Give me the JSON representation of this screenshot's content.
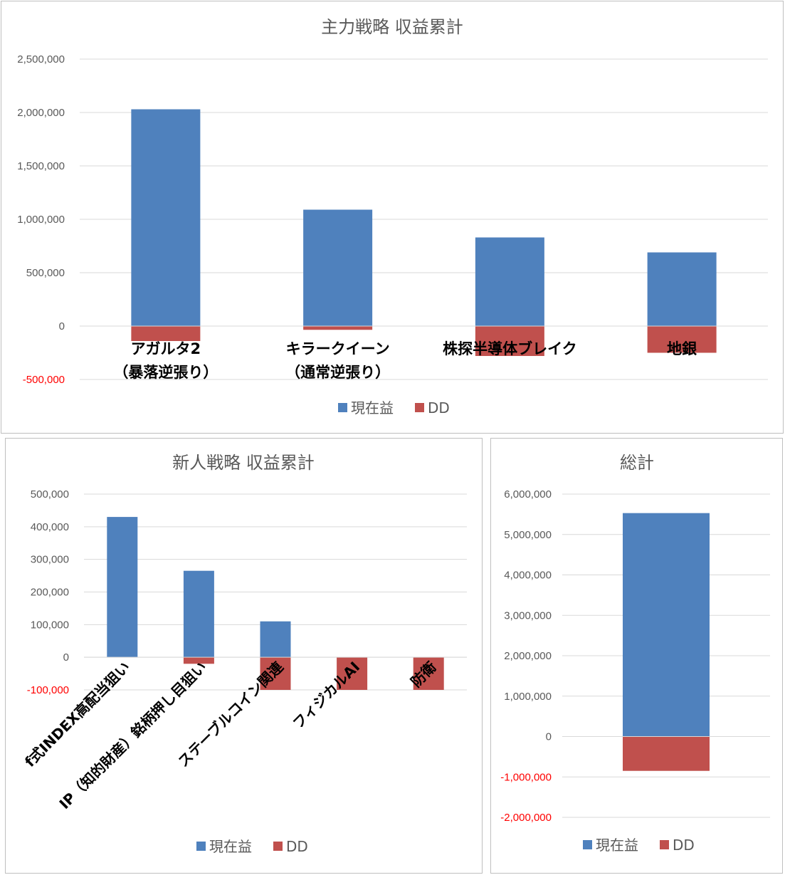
{
  "colors": {
    "profit": "#4f81bd",
    "dd": "#c0504d",
    "neg_tick": "#ff0000"
  },
  "chart_data": [
    {
      "id": "main",
      "type": "bar",
      "title": "主力戦略 収益累計",
      "categories": [
        [
          "アガルタ2",
          "（暴落逆張り）"
        ],
        [
          "キラークイーン",
          "（通常逆張り）"
        ],
        [
          "株探半導体ブレイク"
        ],
        [
          "地銀"
        ]
      ],
      "series": [
        {
          "name": "現在益",
          "values": [
            2030000,
            1090000,
            830000,
            690000
          ]
        },
        {
          "name": "DD",
          "values": [
            -140000,
            -35000,
            -280000,
            -250000
          ]
        }
      ],
      "ylim": [
        -500000,
        2500000
      ],
      "yticks": [
        "2,500,000",
        "2,000,000",
        "1,500,000",
        "1,000,000",
        "500,000",
        "0",
        "-500,000"
      ],
      "legend": "bottom",
      "grid": true
    },
    {
      "id": "new",
      "type": "bar",
      "title": "新人戦略 収益累計",
      "categories": [
        [
          "f式INDEX高配当狙い"
        ],
        [
          "IP（知的財産）銘柄押し目狙い"
        ],
        [
          "ステーブルコイン関連"
        ],
        [
          "フィジカルAI"
        ],
        [
          "防衛"
        ]
      ],
      "series": [
        {
          "name": "現在益",
          "values": [
            430000,
            265000,
            110000,
            0,
            0
          ]
        },
        {
          "name": "DD",
          "values": [
            0,
            -20000,
            -100000,
            -100000,
            -100000
          ]
        }
      ],
      "ylim": [
        -100000,
        500000
      ],
      "yticks": [
        "500,000",
        "400,000",
        "300,000",
        "200,000",
        "100,000",
        "0",
        "-100,000"
      ],
      "legend": "bottom",
      "grid": true
    },
    {
      "id": "total",
      "type": "bar",
      "title": "総計",
      "categories": [
        [
          ""
        ]
      ],
      "series": [
        {
          "name": "現在益",
          "values": [
            5530000
          ]
        },
        {
          "name": "DD",
          "values": [
            -850000
          ]
        }
      ],
      "ylim": [
        -2000000,
        6000000
      ],
      "yticks": [
        "6,000,000",
        "5,000,000",
        "4,000,000",
        "3,000,000",
        "2,000,000",
        "1,000,000",
        "0",
        "-1,000,000",
        "-2,000,000"
      ],
      "legend": "bottom",
      "grid": true
    }
  ]
}
